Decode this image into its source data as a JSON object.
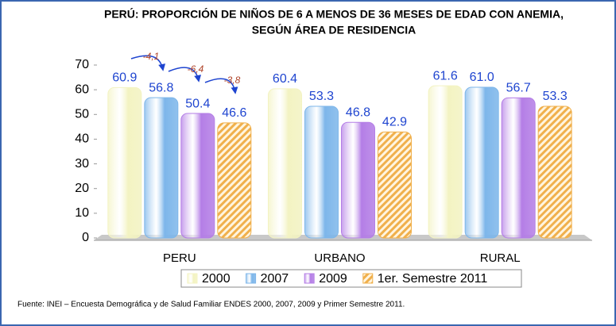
{
  "chart_data": {
    "type": "bar",
    "title": "PERÚ: PROPORCIÓN DE NIÑOS DE 6 A MENOS DE 36 MESES DE EDAD CON ANEMIA,",
    "subtitle": "SEGÚN ÁREA DE RESIDENCIA",
    "categories": [
      "PERU",
      "URBANO",
      "RURAL"
    ],
    "series": [
      {
        "name": "2000",
        "color": "#f3f3c2",
        "values": [
          60.9,
          60.4,
          61.6
        ],
        "value_labels": [
          "60.9",
          "60.4",
          "61.6"
        ]
      },
      {
        "name": "2007",
        "color": "#7db6ea",
        "values": [
          56.8,
          53.3,
          61.0
        ],
        "value_labels": [
          "56.8",
          "53.3",
          "61.0"
        ]
      },
      {
        "name": "2009",
        "color": "#b47ee6",
        "values": [
          50.4,
          46.8,
          56.7
        ],
        "value_labels": [
          "50.4",
          "46.8",
          "56.7"
        ]
      },
      {
        "name": "1er. Semestre 2011",
        "color": "#f0b04c",
        "hatch": true,
        "values": [
          46.6,
          42.9,
          53.3
        ],
        "value_labels": [
          "46.6",
          "42.9",
          "53.3"
        ]
      }
    ],
    "annotations": [
      "-4,1",
      "-6,4",
      "-3,8"
    ],
    "source": "Fuente: INEI – Encuesta Demográfica y de Salud Familiar ENDES 2000, 2007, 2009  y Primer Semestre 2011.",
    "ylim": [
      0,
      70
    ],
    "yticks": [
      0,
      10,
      20,
      30,
      40,
      50,
      60,
      70
    ],
    "grid": false
  }
}
